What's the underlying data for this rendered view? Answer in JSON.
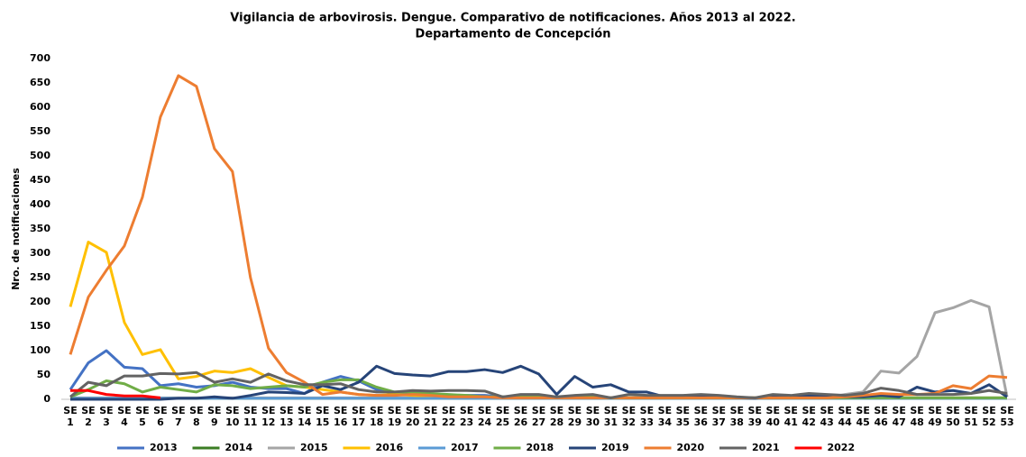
{
  "chart_data": {
    "type": "line",
    "title": "Vigilancia de arbovirosis. Dengue. Comparativo de notificaciones. Años 2013 al 2022.",
    "subtitle": "Departamento de Concepción",
    "y_label": "Nro. de notificaciones",
    "categories": [
      "SE 1",
      "SE 2",
      "SE 3",
      "SE 4",
      "SE 5",
      "SE 6",
      "SE 7",
      "SE 8",
      "SE 9",
      "SE 10",
      "SE 11",
      "SE 12",
      "SE 13",
      "SE 14",
      "SE 15",
      "SE 16",
      "SE 17",
      "SE 18",
      "SE 19",
      "SE 20",
      "SE 21",
      "SE 22",
      "SE 23",
      "SE 24",
      "SE 25",
      "SE 26",
      "SE 27",
      "SE 28",
      "SE 29",
      "SE 30",
      "SE 31",
      "SE 32",
      "SE 33",
      "SE 34",
      "SE 35",
      "SE 36",
      "SE 37",
      "SE 38",
      "SE 39",
      "SE 40",
      "SE 41",
      "SE 42",
      "SE 43",
      "SE 44",
      "SE 45",
      "SE 46",
      "SE 47",
      "SE 48",
      "SE 49",
      "SE 50",
      "SE 51",
      "SE 52",
      "SE 53"
    ],
    "ylim": [
      0,
      700
    ],
    "yticks": [
      0,
      50,
      100,
      150,
      200,
      250,
      300,
      350,
      400,
      450,
      500,
      550,
      600,
      650,
      700
    ],
    "grid": false,
    "legend": "bottom",
    "series": [
      {
        "name": "2013",
        "color": "#4472c4",
        "values": [
          20,
          75,
          100,
          66,
          63,
          28,
          32,
          25,
          28,
          35,
          25,
          22,
          22,
          12,
          35,
          47,
          38,
          20,
          12,
          10,
          8,
          8,
          8,
          8,
          5,
          3,
          3,
          3,
          3,
          3,
          3,
          3,
          3,
          3,
          3,
          3,
          3,
          3,
          3,
          3,
          3,
          3,
          3,
          3,
          3,
          3,
          3,
          3,
          3,
          3,
          3,
          3,
          3
        ]
      },
      {
        "name": "2014",
        "color": "#3b7d23",
        "values": [
          2,
          2,
          2,
          2,
          2,
          2,
          2,
          2,
          2,
          2,
          2,
          2,
          2,
          2,
          2,
          2,
          2,
          2,
          2,
          2,
          2,
          2,
          2,
          2,
          2,
          2,
          2,
          2,
          2,
          2,
          2,
          2,
          2,
          2,
          2,
          2,
          2,
          2,
          2,
          2,
          2,
          2,
          2,
          2,
          2,
          2,
          2,
          2,
          2,
          2,
          2,
          2,
          2
        ]
      },
      {
        "name": "2015",
        "color": "#a5a5a5",
        "values": [
          3,
          3,
          3,
          3,
          3,
          3,
          3,
          3,
          3,
          3,
          3,
          3,
          3,
          3,
          3,
          3,
          3,
          3,
          3,
          3,
          3,
          3,
          3,
          3,
          3,
          3,
          3,
          3,
          3,
          3,
          3,
          3,
          3,
          3,
          3,
          3,
          3,
          3,
          3,
          3,
          3,
          3,
          3,
          10,
          15,
          58,
          54,
          88,
          178,
          188,
          203,
          190,
          5
        ]
      },
      {
        "name": "2016",
        "color": "#ffc000",
        "values": [
          190,
          323,
          302,
          158,
          92,
          102,
          42,
          47,
          58,
          55,
          63,
          45,
          28,
          25,
          20,
          15,
          10,
          8,
          10,
          8,
          5,
          5,
          5,
          5,
          3,
          3,
          3,
          3,
          3,
          3,
          3,
          3,
          3,
          3,
          3,
          3,
          3,
          3,
          3,
          3,
          3,
          3,
          3,
          3,
          3,
          3,
          3,
          3,
          3,
          3,
          3,
          3,
          3
        ]
      },
      {
        "name": "2017",
        "color": "#5b9bd5",
        "values": [
          2,
          2,
          2,
          2,
          2,
          2,
          2,
          2,
          2,
          2,
          2,
          2,
          2,
          2,
          2,
          2,
          2,
          2,
          2,
          2,
          2,
          2,
          2,
          2,
          2,
          2,
          2,
          2,
          2,
          2,
          2,
          2,
          2,
          2,
          2,
          2,
          2,
          2,
          2,
          2,
          2,
          2,
          2,
          2,
          2,
          2,
          2,
          2,
          2,
          2,
          2,
          2,
          2
        ]
      },
      {
        "name": "2018",
        "color": "#70ad47",
        "values": [
          5,
          20,
          38,
          32,
          15,
          25,
          20,
          15,
          30,
          28,
          22,
          25,
          28,
          25,
          35,
          40,
          40,
          25,
          15,
          15,
          12,
          10,
          8,
          5,
          5,
          5,
          5,
          5,
          5,
          5,
          3,
          3,
          3,
          3,
          3,
          3,
          3,
          3,
          3,
          3,
          3,
          3,
          3,
          3,
          3,
          3,
          3,
          3,
          3,
          3,
          3,
          3,
          3
        ]
      },
      {
        "name": "2019",
        "color": "#264478",
        "values": [
          0,
          0,
          0,
          0,
          0,
          0,
          2,
          2,
          5,
          2,
          8,
          15,
          14,
          12,
          28,
          20,
          35,
          68,
          53,
          50,
          48,
          57,
          57,
          61,
          55,
          68,
          52,
          10,
          47,
          25,
          30,
          15,
          15,
          5,
          5,
          8,
          5,
          3,
          2,
          5,
          5,
          8,
          5,
          5,
          5,
          8,
          5,
          25,
          15,
          18,
          12,
          30,
          5
        ]
      },
      {
        "name": "2020",
        "color": "#ed7d31",
        "values": [
          92,
          210,
          265,
          315,
          415,
          580,
          665,
          643,
          515,
          468,
          250,
          105,
          55,
          35,
          10,
          15,
          10,
          8,
          8,
          10,
          8,
          5,
          5,
          5,
          3,
          3,
          3,
          3,
          3,
          3,
          3,
          3,
          3,
          3,
          3,
          3,
          3,
          3,
          3,
          3,
          3,
          3,
          3,
          5,
          8,
          12,
          10,
          10,
          12,
          28,
          22,
          48,
          45
        ]
      },
      {
        "name": "2021",
        "color": "#636363",
        "values": [
          5,
          35,
          28,
          48,
          48,
          53,
          52,
          55,
          35,
          42,
          35,
          52,
          38,
          30,
          30,
          32,
          20,
          15,
          15,
          18,
          17,
          18,
          18,
          17,
          5,
          10,
          10,
          5,
          8,
          10,
          3,
          10,
          8,
          8,
          8,
          10,
          8,
          5,
          3,
          10,
          8,
          12,
          10,
          8,
          12,
          23,
          18,
          10,
          10,
          10,
          12,
          18,
          12
        ]
      },
      {
        "name": "2022",
        "color": "#ff0000",
        "values": [
          18,
          18,
          10,
          7,
          7,
          3,
          null,
          null,
          null,
          null,
          null,
          null,
          null,
          null,
          null,
          null,
          null,
          null,
          null,
          null,
          null,
          null,
          null,
          null,
          null,
          null,
          null,
          null,
          null,
          null,
          null,
          null,
          null,
          null,
          null,
          null,
          null,
          null,
          null,
          null,
          null,
          null,
          null,
          null,
          null,
          null,
          null,
          null,
          null,
          null,
          null,
          null,
          null
        ]
      }
    ]
  }
}
